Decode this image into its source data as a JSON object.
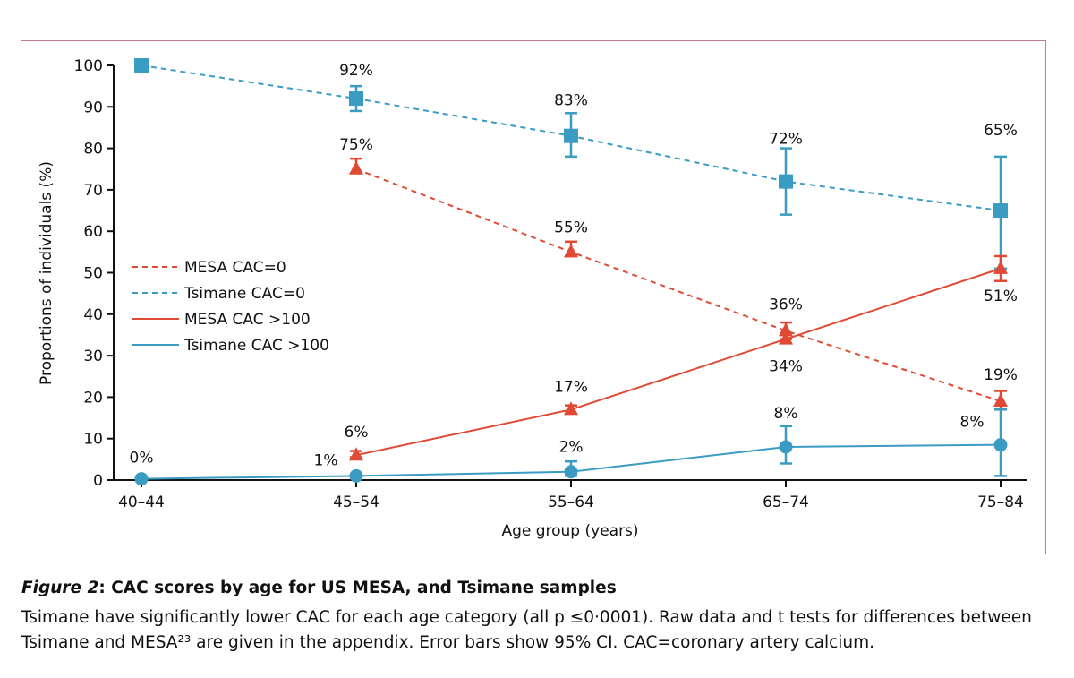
{
  "chart_data": {
    "type": "line",
    "title": "",
    "xlabel": "Age group (years)",
    "ylabel": "Proportions of individuals (%)",
    "ylim": [
      0,
      100
    ],
    "yticks": [
      0,
      10,
      20,
      30,
      40,
      50,
      60,
      70,
      80,
      90,
      100
    ],
    "categories": [
      "40–44",
      "45–54",
      "55–64",
      "65–74",
      "75–84"
    ],
    "legend_position": "center-left",
    "grid": false,
    "series": [
      {
        "name": "MESA CAC=0",
        "color": "#e04a35",
        "dash": true,
        "marker": "triangle",
        "values": [
          null,
          75,
          55,
          36,
          19
        ],
        "ci_low": [
          null,
          74,
          54,
          34,
          17
        ],
        "ci_high": [
          null,
          77.5,
          57.5,
          38,
          21.5
        ],
        "labels": [
          "",
          "75%",
          "55%",
          "36%",
          "19%"
        ]
      },
      {
        "name": "Tsimane CAC=0",
        "color": "#3a9cc2",
        "dash": true,
        "marker": "square",
        "values": [
          100,
          92,
          83,
          72,
          65
        ],
        "ci_low": [
          null,
          89,
          78,
          64,
          51
        ],
        "ci_high": [
          null,
          95,
          88.5,
          80,
          78
        ],
        "labels": [
          "",
          "92%",
          "83%",
          "72%",
          "65%"
        ]
      },
      {
        "name": "MESA CAC >100",
        "color": "#e04a35",
        "dash": false,
        "marker": "triangle",
        "values": [
          null,
          6,
          17,
          34,
          51
        ],
        "ci_low": [
          null,
          5.5,
          16,
          33,
          48
        ],
        "ci_high": [
          null,
          7,
          18,
          35.5,
          54
        ],
        "labels": [
          "",
          "6%",
          "17%",
          "34%",
          "51%"
        ]
      },
      {
        "name": "Tsimane CAC >100",
        "color": "#3a9cc2",
        "dash": false,
        "marker": "circle",
        "values": [
          0.3,
          1,
          2,
          8,
          8.5
        ],
        "ci_low": [
          null,
          null,
          1,
          4,
          1
        ],
        "ci_high": [
          null,
          null,
          4.5,
          13,
          17
        ],
        "labels": [
          "0%",
          "1%",
          "2%",
          "8%",
          "8%"
        ]
      }
    ]
  },
  "caption": {
    "figure_label": "Figure 2",
    "title": ": CAC scores by age for US MESA, and Tsimane samples",
    "body": "Tsimane have significantly lower CAC for each age category (all p ≤0·0001). Raw data and t tests for differences between Tsimane and MESA²³ are given in the appendix. Error bars show 95% CI. CAC=coronary artery calcium."
  }
}
